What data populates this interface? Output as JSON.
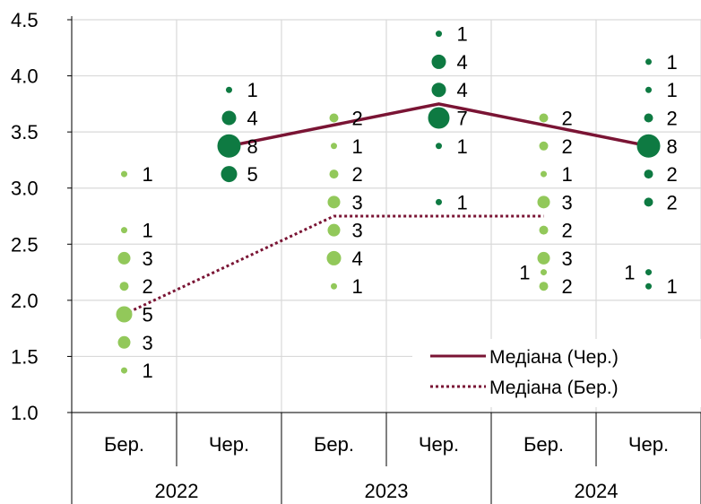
{
  "chart_data": {
    "type": "scatter",
    "title": "",
    "xlabel": "",
    "ylabel": "",
    "ylim": [
      1.0,
      4.5
    ],
    "yticks": [
      "1.0",
      "1.5",
      "2.0",
      "2.5",
      "3.0",
      "3.5",
      "4.0",
      "4.5"
    ],
    "grid": true,
    "legend_position": "bottom-right",
    "categories": [
      "Бер.",
      "Чер.",
      "Бер.",
      "Чер.",
      "Бер.",
      "Чер."
    ],
    "years": [
      "2022",
      "2023",
      "2024"
    ],
    "colors": {
      "march": "#92c85a",
      "june": "#0e7a42",
      "median_line": "#7a1434"
    },
    "series": [
      {
        "name": "",
        "survey": "march",
        "points": [
          {
            "x": 0,
            "y": 1.375,
            "count": "1"
          },
          {
            "x": 0,
            "y": 1.625,
            "count": "3"
          },
          {
            "x": 0,
            "y": 1.875,
            "count": "5"
          },
          {
            "x": 0,
            "y": 2.125,
            "count": "2"
          },
          {
            "x": 0,
            "y": 2.375,
            "count": "3"
          },
          {
            "x": 0,
            "y": 2.625,
            "count": "1"
          },
          {
            "x": 0,
            "y": 3.125,
            "count": "1"
          },
          {
            "x": 2,
            "y": 2.125,
            "count": "1"
          },
          {
            "x": 2,
            "y": 2.375,
            "count": "4"
          },
          {
            "x": 2,
            "y": 2.625,
            "count": "3"
          },
          {
            "x": 2,
            "y": 2.875,
            "count": "3"
          },
          {
            "x": 2,
            "y": 3.125,
            "count": "2"
          },
          {
            "x": 2,
            "y": 3.375,
            "count": "1"
          },
          {
            "x": 2,
            "y": 3.625,
            "count": "2"
          },
          {
            "x": 4,
            "y": 2.125,
            "count": "2"
          },
          {
            "x": 4,
            "y": 2.25,
            "count": "1",
            "label_side": "left"
          },
          {
            "x": 4,
            "y": 2.375,
            "count": "3"
          },
          {
            "x": 4,
            "y": 2.625,
            "count": "2"
          },
          {
            "x": 4,
            "y": 2.875,
            "count": "3"
          },
          {
            "x": 4,
            "y": 3.125,
            "count": "1"
          },
          {
            "x": 4,
            "y": 3.375,
            "count": "2"
          },
          {
            "x": 4,
            "y": 3.625,
            "count": "2"
          }
        ]
      },
      {
        "name": "",
        "survey": "june",
        "points": [
          {
            "x": 1,
            "y": 3.125,
            "count": "5"
          },
          {
            "x": 1,
            "y": 3.375,
            "count": "8"
          },
          {
            "x": 1,
            "y": 3.625,
            "count": "4"
          },
          {
            "x": 1,
            "y": 3.875,
            "count": "1"
          },
          {
            "x": 3,
            "y": 2.875,
            "count": "1"
          },
          {
            "x": 3,
            "y": 3.375,
            "count": "1"
          },
          {
            "x": 3,
            "y": 3.625,
            "count": "7"
          },
          {
            "x": 3,
            "y": 3.875,
            "count": "4"
          },
          {
            "x": 3,
            "y": 4.125,
            "count": "4"
          },
          {
            "x": 3,
            "y": 4.375,
            "count": "1"
          },
          {
            "x": 5,
            "y": 2.125,
            "count": "1"
          },
          {
            "x": 5,
            "y": 2.25,
            "count": "1",
            "label_side": "left"
          },
          {
            "x": 5,
            "y": 2.875,
            "count": "2"
          },
          {
            "x": 5,
            "y": 3.125,
            "count": "2"
          },
          {
            "x": 5,
            "y": 3.375,
            "count": "8"
          },
          {
            "x": 5,
            "y": 3.625,
            "count": "2"
          },
          {
            "x": 5,
            "y": 3.875,
            "count": "1"
          },
          {
            "x": 5,
            "y": 4.125,
            "count": "1"
          }
        ]
      }
    ],
    "lines": [
      {
        "name": "Медіана (Чер.)",
        "style": "solid",
        "x": [
          1,
          3,
          5
        ],
        "y": [
          3.375,
          3.75,
          3.375
        ]
      },
      {
        "name": "Медіана (Бер.)",
        "style": "dotted",
        "x": [
          0,
          2,
          4
        ],
        "y": [
          1.875,
          2.75,
          2.75
        ]
      }
    ]
  }
}
